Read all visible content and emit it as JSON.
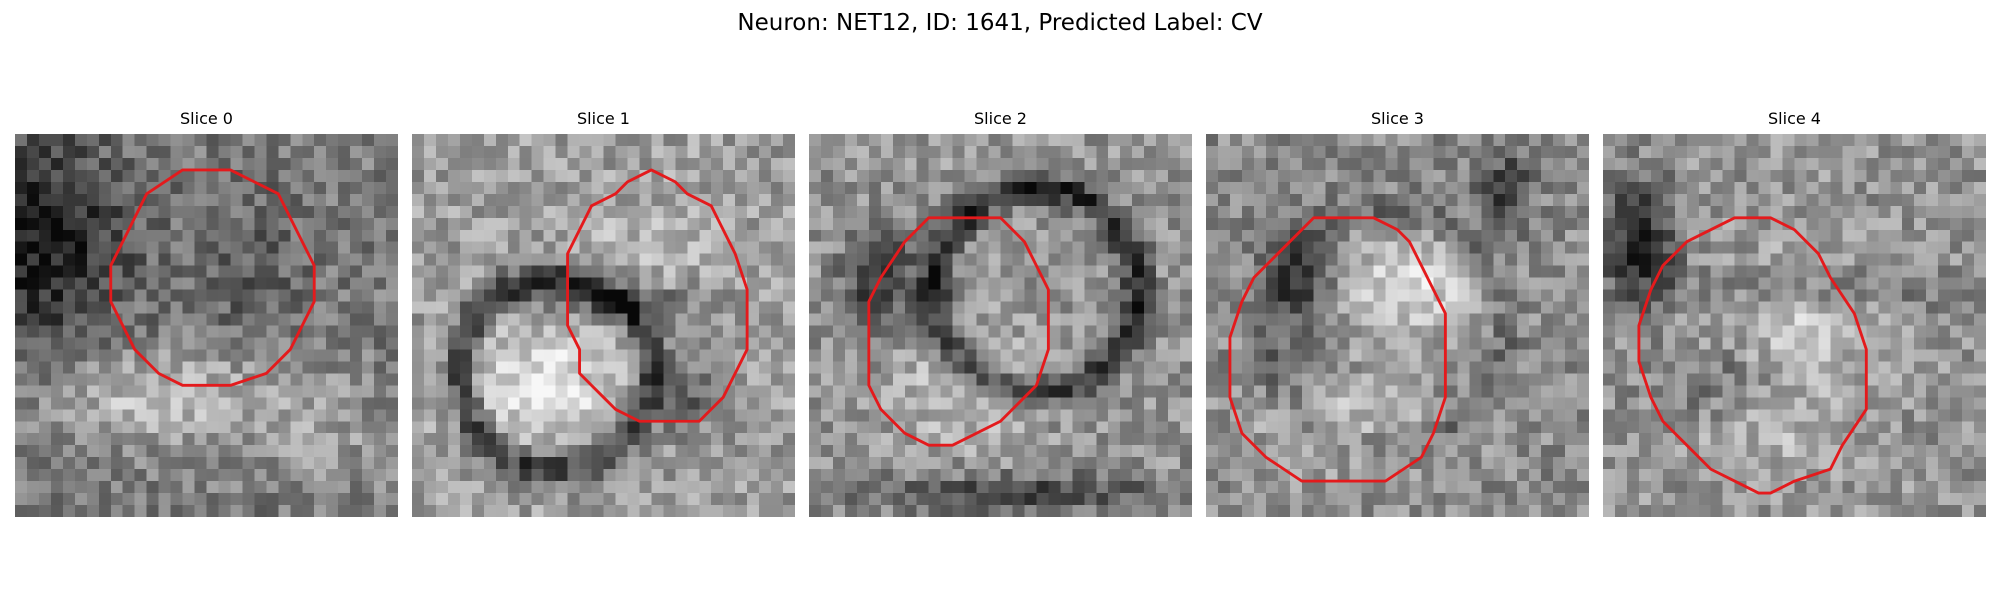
{
  "figure": {
    "title": "Neuron: NET12, ID: 1641, Predicted Label: CV",
    "outline_color": "#e41a1c",
    "colormap": "gray",
    "panels": [
      {
        "title": "Slice 0"
      },
      {
        "title": "Slice 1"
      },
      {
        "title": "Slice 2"
      },
      {
        "title": "Slice 3"
      },
      {
        "title": "Slice 4"
      }
    ]
  }
}
